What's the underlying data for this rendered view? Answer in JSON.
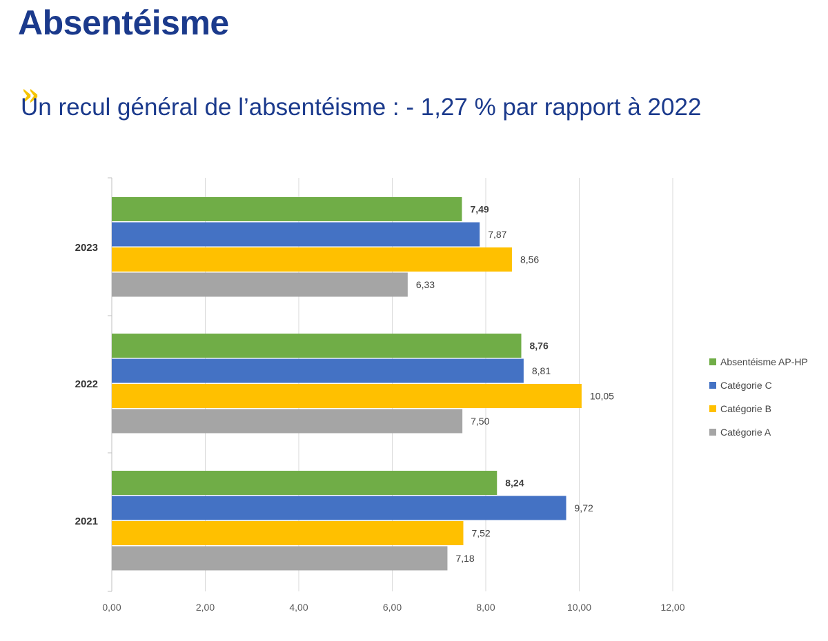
{
  "header": {
    "title": "Absentéisme",
    "quote_glyph": "»",
    "subtitle": "Un recul général de l’absentéisme : - 1,27 % par rapport à 2022"
  },
  "colors": {
    "title": "#1b3a8c",
    "accent": "#f5c400",
    "gridline": "#d9d9d9"
  },
  "chart_data": {
    "type": "bar",
    "orientation": "horizontal",
    "title": "",
    "xlabel": "",
    "ylabel": "",
    "xlim": [
      0,
      12
    ],
    "x_ticks": [
      0,
      2,
      4,
      6,
      8,
      10,
      12
    ],
    "x_tick_labels": [
      "0,00",
      "2,00",
      "4,00",
      "6,00",
      "8,00",
      "10,00",
      "12,00"
    ],
    "grid": true,
    "legend_position": "right",
    "categories": [
      "2023",
      "2022",
      "2021"
    ],
    "series": [
      {
        "name": "Absentéisme AP-HP",
        "color": "#70ad47",
        "values": [
          7.49,
          8.76,
          8.24
        ],
        "labels": [
          "7,49",
          "8,76",
          "8,24"
        ],
        "label_bold": true
      },
      {
        "name": "Catégorie C",
        "color": "#4472c4",
        "values": [
          7.87,
          8.81,
          9.72
        ],
        "labels": [
          "7,87",
          "8,81",
          "9,72"
        ],
        "label_bold": false
      },
      {
        "name": "Catégorie B",
        "color": "#ffc000",
        "values": [
          8.56,
          10.05,
          7.52
        ],
        "labels": [
          "8,56",
          "10,05",
          "7,52"
        ],
        "label_bold": false
      },
      {
        "name": "Catégorie A",
        "color": "#a5a5a5",
        "values": [
          6.33,
          7.5,
          7.18
        ],
        "labels": [
          "6,33",
          "7,50",
          "7,18"
        ],
        "label_bold": false
      }
    ]
  }
}
